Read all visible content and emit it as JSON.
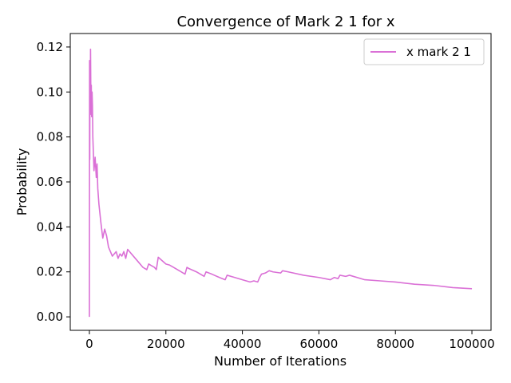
{
  "chart_data": {
    "type": "line",
    "title": "Convergence of Mark 2 1 for x",
    "xlabel": "Number of Iterations",
    "ylabel": "Probability",
    "xlim": [
      -5000,
      105000
    ],
    "ylim": [
      -0.006,
      0.126
    ],
    "xticks": [
      0,
      20000,
      40000,
      60000,
      80000,
      100000
    ],
    "xtick_labels": [
      "0",
      "20000",
      "40000",
      "60000",
      "80000",
      "100000"
    ],
    "yticks": [
      0.0,
      0.02,
      0.04,
      0.06,
      0.08,
      0.1,
      0.12
    ],
    "ytick_labels": [
      "0.00",
      "0.02",
      "0.04",
      "0.06",
      "0.08",
      "0.10",
      "0.12"
    ],
    "grid": false,
    "legend_position": "top-right",
    "series": [
      {
        "name": "x mark 2 1",
        "color": "#da70d6",
        "x": [
          0,
          50,
          100,
          150,
          250,
          300,
          400,
          500,
          600,
          700,
          800,
          900,
          1000,
          1200,
          1500,
          1800,
          2000,
          2200,
          2500,
          3000,
          3500,
          4000,
          4500,
          5000,
          6000,
          7000,
          7500,
          8000,
          8500,
          9000,
          9500,
          10000,
          10500,
          11000,
          12000,
          13000,
          14000,
          15000,
          15500,
          16000,
          17000,
          17500,
          18000,
          19000,
          20000,
          21000,
          22000,
          24000,
          25000,
          25500,
          26000,
          28000,
          30000,
          30500,
          32000,
          34000,
          35500,
          36000,
          38000,
          40000,
          42000,
          43000,
          44000,
          44500,
          45000,
          46000,
          47000,
          48000,
          50000,
          50500,
          52000,
          56000,
          60000,
          63000,
          64000,
          65000,
          65500,
          67000,
          68000,
          72000,
          76000,
          80000,
          85000,
          90000,
          95000,
          100000
        ],
        "y": [
          0.0,
          0.114,
          0.07,
          0.112,
          0.09,
          0.119,
          0.095,
          0.103,
          0.089,
          0.1,
          0.094,
          0.08,
          0.075,
          0.065,
          0.071,
          0.062,
          0.068,
          0.057,
          0.05,
          0.042,
          0.035,
          0.039,
          0.036,
          0.031,
          0.027,
          0.029,
          0.026,
          0.028,
          0.027,
          0.029,
          0.026,
          0.03,
          0.029,
          0.028,
          0.026,
          0.024,
          0.022,
          0.021,
          0.0235,
          0.023,
          0.022,
          0.021,
          0.0265,
          0.025,
          0.0235,
          0.023,
          0.022,
          0.02,
          0.019,
          0.022,
          0.0215,
          0.02,
          0.018,
          0.02,
          0.019,
          0.0175,
          0.0165,
          0.0185,
          0.0175,
          0.0165,
          0.0155,
          0.016,
          0.0155,
          0.0175,
          0.019,
          0.0195,
          0.0205,
          0.02,
          0.0195,
          0.0205,
          0.02,
          0.0185,
          0.0175,
          0.0165,
          0.0175,
          0.017,
          0.0185,
          0.018,
          0.0185,
          0.0165,
          0.016,
          0.0155,
          0.0145,
          0.014,
          0.013,
          0.0125
        ]
      }
    ]
  }
}
